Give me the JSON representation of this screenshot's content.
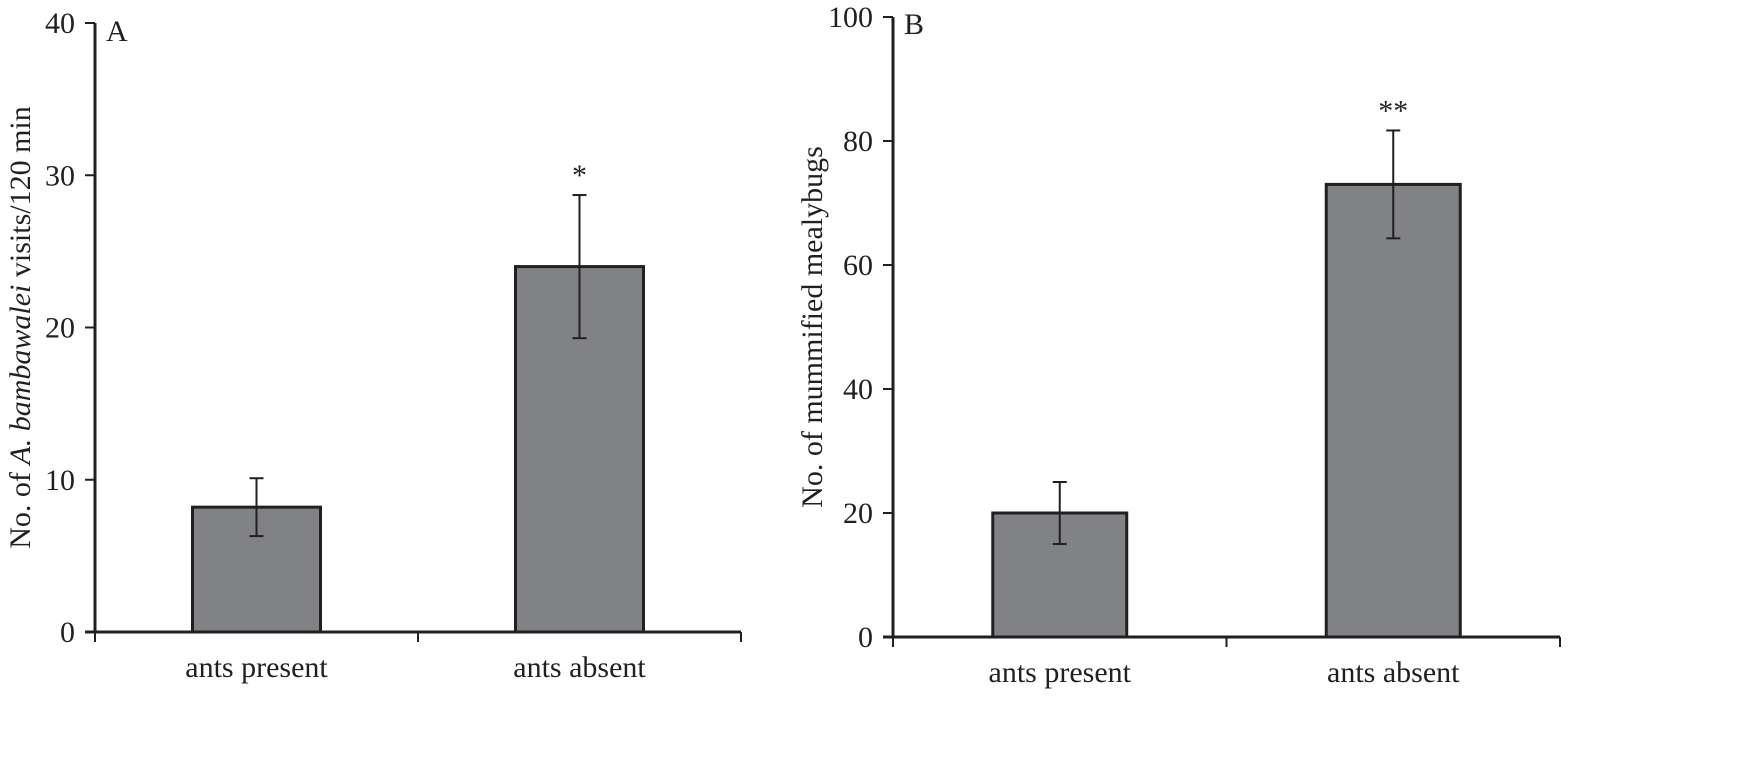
{
  "chart_data": [
    {
      "type": "bar",
      "panel_label": "A",
      "categories": [
        "ants present",
        "ants absent"
      ],
      "values": [
        8.2,
        24.0
      ],
      "error": [
        1.9,
        4.7
      ],
      "significance": [
        "",
        "*"
      ],
      "ylabel_parts": [
        "No. of ",
        "A. bambawalei",
        " visits/120 min"
      ],
      "ylim": [
        0,
        40
      ],
      "yticks": [
        0,
        10,
        20,
        30,
        40
      ],
      "bar_color": "#818285",
      "grid": false
    },
    {
      "type": "bar",
      "panel_label": "B",
      "categories": [
        "ants present",
        "ants absent"
      ],
      "values": [
        20,
        73
      ],
      "error": [
        5,
        8.7
      ],
      "significance": [
        "",
        "**"
      ],
      "ylabel_parts": [
        "No. of mummified mealybugs",
        "",
        ""
      ],
      "ylim": [
        0,
        100
      ],
      "yticks": [
        0,
        20,
        40,
        60,
        80,
        100
      ],
      "bar_color": "#818285",
      "grid": false
    }
  ]
}
